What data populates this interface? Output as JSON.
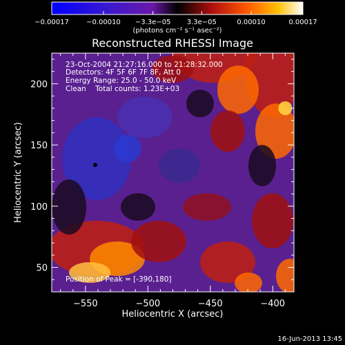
{
  "chart_data": {
    "type": "heatmap",
    "title": "Reconstructed RHESSI Image",
    "xlabel": "Heliocentric X (arcsec)",
    "ylabel": "Heliocentric Y (arcsec)",
    "xlim": [
      -577,
      -383
    ],
    "ylim": [
      30,
      225
    ],
    "x_ticks": [
      -550,
      -500,
      -450,
      -400
    ],
    "x_tick_labels": [
      "−550",
      "−500",
      "−450",
      "−400"
    ],
    "y_ticks": [
      50,
      100,
      150,
      200
    ],
    "y_tick_labels": [
      "50",
      "100",
      "150",
      "200"
    ],
    "colorbar": {
      "range": [
        -0.00017,
        0.00017
      ],
      "ticks": [
        -0.00017,
        -0.0001,
        -3.3e-05,
        3.3e-05,
        0.0001,
        0.00017
      ],
      "tick_labels": [
        "−0.00017",
        "−0.00010",
        "−3.3e−05",
        "3.3e−05",
        "0.00010",
        "0.00017"
      ],
      "unit_label": "(photons cm⁻² s⁻¹ asec⁻²)"
    },
    "annotations": {
      "time_range": "23-Oct-2004 21:27:16.000 to 21:28:32.000",
      "detectors": "Detectors: 4F 5F 6F 7F 8F, Att 0",
      "energy": "Energy Range: 25.0 - 50.0 keV",
      "clean": "Clean    Total counts: 1.23E+03",
      "peak": "Position of Peak = [-390,180]"
    },
    "peak": [
      -390,
      180
    ],
    "timestamp": "16-Jun-2013 13:45",
    "grid": false
  }
}
